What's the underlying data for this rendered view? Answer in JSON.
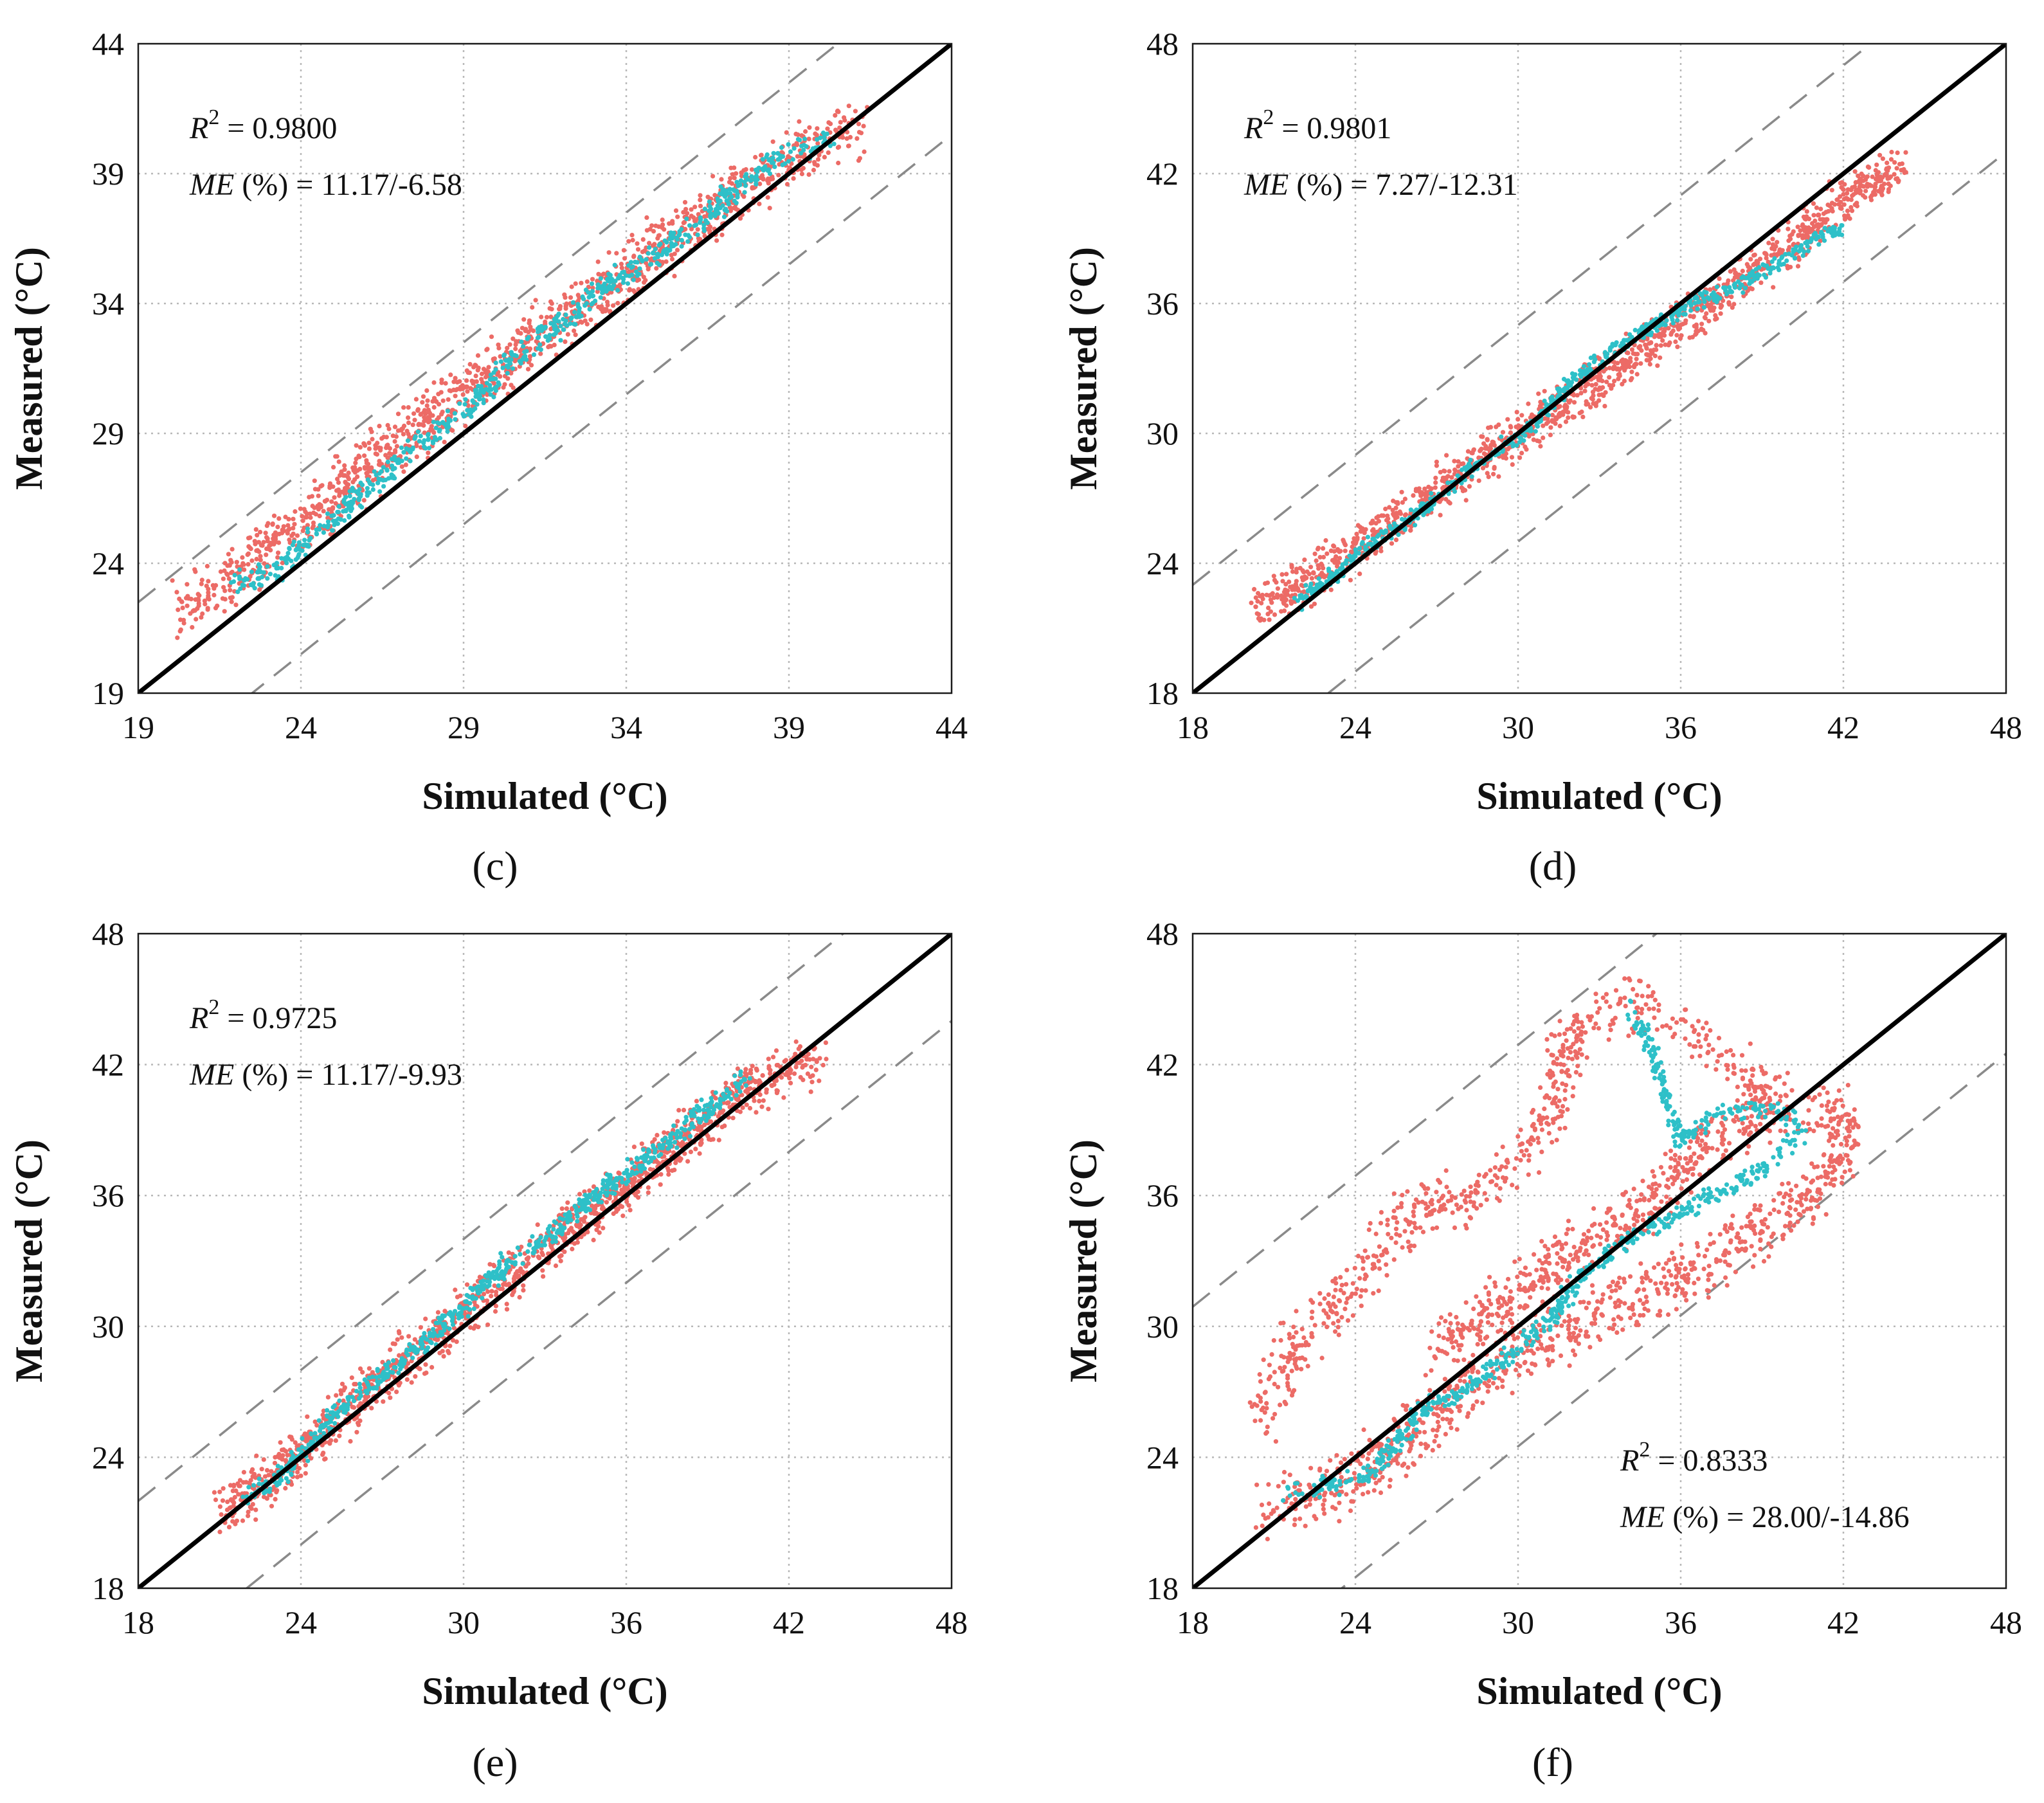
{
  "colors": {
    "series_red": "#ec6b66",
    "series_cyan": "#2ec0c8",
    "ideal_line": "#000000",
    "band_line": "#8a8a8a"
  },
  "chart_data": [
    {
      "type": "scatter",
      "panel_label": "(c)",
      "xlabel": "Simulated (°C)",
      "ylabel": "Measured (°C)",
      "xlim": [
        19,
        44
      ],
      "ylim": [
        19,
        44
      ],
      "xticks": [
        "19",
        "24",
        "29",
        "34",
        "39",
        "44"
      ],
      "yticks": [
        "19",
        "24",
        "29",
        "34",
        "39",
        "44"
      ],
      "grid": true,
      "ideal_line": [
        [
          19,
          19
        ],
        [
          44,
          44
        ]
      ],
      "error_band_offset": 3.5,
      "r2_label": "R",
      "r2_sup": "2",
      "r2_value": " = 0.9800",
      "me_label": "ME",
      "me_value": " (%) = 11.17/-6.58",
      "stats_position": "top-left",
      "series": [
        {
          "name": "red",
          "color": "#ec6b66",
          "path": [
            [
              20.3,
              22.2
            ],
            [
              21.5,
              23.2
            ],
            [
              22.7,
              24.3
            ],
            [
              24,
              25.6
            ],
            [
              25.5,
              27
            ],
            [
              27,
              28.6
            ],
            [
              28.5,
              30.1
            ],
            [
              30,
              31.4
            ],
            [
              31.5,
              32.8
            ],
            [
              33,
              34.2
            ],
            [
              34.5,
              35.7
            ],
            [
              36,
              37
            ],
            [
              37.5,
              38.3
            ],
            [
              39,
              39.6
            ],
            [
              40.3,
              40.4
            ],
            [
              41.1,
              40.8
            ]
          ],
          "spread": 1.3,
          "count": 1300
        },
        {
          "name": "cyan",
          "color": "#2ec0c8",
          "path": [
            [
              22,
              23.2
            ],
            [
              23.2,
              23.6
            ],
            [
              24,
              24.7
            ],
            [
              25,
              25.7
            ],
            [
              26,
              26.8
            ],
            [
              27.5,
              28.5
            ],
            [
              29,
              29.8
            ],
            [
              30.5,
              31.8
            ],
            [
              32,
              33.2
            ],
            [
              33.5,
              34.8
            ],
            [
              35,
              36
            ],
            [
              36.5,
              37.4
            ],
            [
              38,
              39
            ],
            [
              39.3,
              40
            ],
            [
              40.3,
              40.3
            ]
          ],
          "spread": 0.55,
          "count": 650
        }
      ]
    },
    {
      "type": "scatter",
      "panel_label": "(d)",
      "xlabel": "Simulated (°C)",
      "ylabel": "Measured (°C)",
      "xlim": [
        18,
        48
      ],
      "ylim": [
        18,
        48
      ],
      "xticks": [
        "18",
        "24",
        "30",
        "36",
        "42",
        "48"
      ],
      "yticks": [
        "18",
        "24",
        "30",
        "36",
        "42",
        "48"
      ],
      "grid": true,
      "ideal_line": [
        [
          18,
          18
        ],
        [
          48,
          48
        ]
      ],
      "error_band_offset": 5,
      "r2_label": "R",
      "r2_sup": "2",
      "r2_value": " = 0.9801",
      "me_label": "ME",
      "me_value": " (%) = 7.27/-12.31",
      "stats_position": "top-left",
      "series": [
        {
          "name": "red",
          "color": "#ec6b66",
          "path": [
            [
              20.5,
              22
            ],
            [
              22,
              23
            ],
            [
              23.5,
              24.3
            ],
            [
              25,
              25.6
            ],
            [
              26.5,
              27
            ],
            [
              28,
              28.2
            ],
            [
              29.5,
              29.5
            ],
            [
              31,
              30.8
            ],
            [
              32.5,
              32
            ],
            [
              34,
              33.3
            ],
            [
              35.5,
              34.8
            ],
            [
              37,
              36
            ],
            [
              38.5,
              37.3
            ],
            [
              40,
              38.6
            ],
            [
              41.5,
              40.2
            ],
            [
              43,
              41.5
            ],
            [
              44.2,
              42.5
            ]
          ],
          "spread": 1.2,
          "count": 1300
        },
        {
          "name": "cyan",
          "color": "#2ec0c8",
          "path": [
            [
              21.8,
              22.2
            ],
            [
              23,
              23.2
            ],
            [
              24.5,
              24.8
            ],
            [
              26,
              26
            ],
            [
              27.5,
              27.6
            ],
            [
              29,
              29
            ],
            [
              30.5,
              30.3
            ],
            [
              32,
              32.5
            ],
            [
              33.5,
              33.8
            ],
            [
              35,
              35
            ],
            [
              36.5,
              36
            ],
            [
              38,
              36.8
            ],
            [
              39.5,
              37.8
            ],
            [
              41,
              39
            ],
            [
              42,
              39.5
            ]
          ],
          "spread": 0.45,
          "count": 650
        }
      ]
    },
    {
      "type": "scatter",
      "panel_label": "(e)",
      "xlabel": "Simulated (°C)",
      "ylabel": "Measured (°C)",
      "xlim": [
        18,
        48
      ],
      "ylim": [
        18,
        48
      ],
      "xticks": [
        "18",
        "24",
        "30",
        "36",
        "42",
        "48"
      ],
      "yticks": [
        "18",
        "24",
        "30",
        "36",
        "42",
        "48"
      ],
      "grid": true,
      "ideal_line": [
        [
          18,
          18
        ],
        [
          48,
          48
        ]
      ],
      "error_band_offset": 4,
      "r2_label": "R",
      "r2_sup": "2",
      "r2_value": " = 0.9725",
      "me_label": "ME",
      "me_value": " (%) = 11.17/-9.93",
      "stats_position": "top-left",
      "series": [
        {
          "name": "red",
          "color": "#ec6b66",
          "path": [
            [
              21,
              21.7
            ],
            [
              22.5,
              22.6
            ],
            [
              24,
              24.2
            ],
            [
              25.5,
              25.9
            ],
            [
              27,
              27.6
            ],
            [
              28.5,
              29.1
            ],
            [
              30,
              30.6
            ],
            [
              31.5,
              32.1
            ],
            [
              33,
              33.6
            ],
            [
              34.5,
              35.1
            ],
            [
              36,
              36.5
            ],
            [
              37.5,
              38
            ],
            [
              39,
              39.4
            ],
            [
              40.5,
              40.9
            ],
            [
              42,
              41.8
            ],
            [
              43,
              42
            ]
          ],
          "spread": 1.3,
          "count": 1300
        },
        {
          "name": "cyan",
          "color": "#2ec0c8",
          "path": [
            [
              22,
              22.2
            ],
            [
              23.2,
              23
            ],
            [
              24.3,
              24.6
            ],
            [
              25.5,
              26.3
            ],
            [
              27,
              27.8
            ],
            [
              28.5,
              29.2
            ],
            [
              30,
              30.9
            ],
            [
              31.5,
              32.8
            ],
            [
              33,
              34
            ],
            [
              34.5,
              35.6
            ],
            [
              36,
              37
            ],
            [
              37.5,
              38.5
            ],
            [
              39,
              40
            ],
            [
              40.5,
              41.4
            ]
          ],
          "spread": 0.55,
          "count": 650
        }
      ]
    },
    {
      "type": "scatter",
      "panel_label": "(f)",
      "xlabel": "Simulated (°C)",
      "ylabel": "Measured (°C)",
      "xlim": [
        18,
        48
      ],
      "ylim": [
        18,
        48
      ],
      "xticks": [
        "18",
        "24",
        "30",
        "36",
        "42",
        "48"
      ],
      "yticks": [
        "18",
        "24",
        "30",
        "36",
        "42",
        "48"
      ],
      "grid": true,
      "ideal_line": [
        [
          18,
          18
        ],
        [
          48,
          48
        ]
      ],
      "error_band_offset": 12.9,
      "error_band_offset_lower": 5.5,
      "r2_label": "R",
      "r2_sup": "2",
      "r2_value": " = 0.8333",
      "me_label": "ME",
      "me_value": " (%) = 28.00/-14.86",
      "stats_position": "bottom-right",
      "series": [
        {
          "name": "red-lower",
          "color": "#ec6b66",
          "path": [
            [
              20.8,
              21.7
            ],
            [
              23,
              22.5
            ],
            [
              25,
              24
            ],
            [
              27,
              26
            ],
            [
              29,
              28
            ],
            [
              31,
              29.5
            ],
            [
              33,
              30.5
            ],
            [
              35,
              31.8
            ],
            [
              37,
              33
            ],
            [
              39,
              34.5
            ],
            [
              41,
              36.2
            ],
            [
              42.2,
              38
            ],
            [
              41.8,
              40
            ],
            [
              40,
              40.3
            ],
            [
              37,
              38.5
            ],
            [
              35,
              36
            ],
            [
              33,
              34
            ],
            [
              31,
              32.5
            ],
            [
              29,
              30.6
            ],
            [
              27,
              29
            ]
          ],
          "spread": 1.6,
          "count": 1400
        },
        {
          "name": "red-upper",
          "color": "#ec6b66",
          "path": [
            [
              20.5,
              26
            ],
            [
              22,
              29.5
            ],
            [
              23.5,
              31
            ],
            [
              25,
              33.5
            ],
            [
              26.5,
              35.5
            ],
            [
              28.5,
              36
            ],
            [
              31,
              39
            ],
            [
              32,
              43.5
            ],
            [
              34,
              45
            ],
            [
              36,
              44
            ],
            [
              38,
              42
            ],
            [
              39.5,
              39.8
            ]
          ],
          "spread": 1.6,
          "count": 650
        },
        {
          "name": "cyan",
          "color": "#2ec0c8",
          "path": [
            [
              21.5,
              22.3
            ],
            [
              23,
              22.7
            ],
            [
              24.5,
              23.2
            ],
            [
              25.5,
              24.6
            ],
            [
              26.5,
              26.2
            ],
            [
              28,
              27
            ],
            [
              29.5,
              28.5
            ],
            [
              31,
              30
            ],
            [
              32.5,
              32.5
            ],
            [
              34,
              34
            ],
            [
              36,
              35.2
            ],
            [
              38,
              36.5
            ],
            [
              39.5,
              37.5
            ],
            [
              40.5,
              39
            ],
            [
              39.5,
              40
            ],
            [
              37.5,
              39.8
            ],
            [
              36,
              38.5
            ],
            [
              35.5,
              40
            ],
            [
              35,
              42.5
            ],
            [
              34.2,
              44.5
            ]
          ],
          "spread": 0.55,
          "count": 700
        }
      ]
    }
  ]
}
